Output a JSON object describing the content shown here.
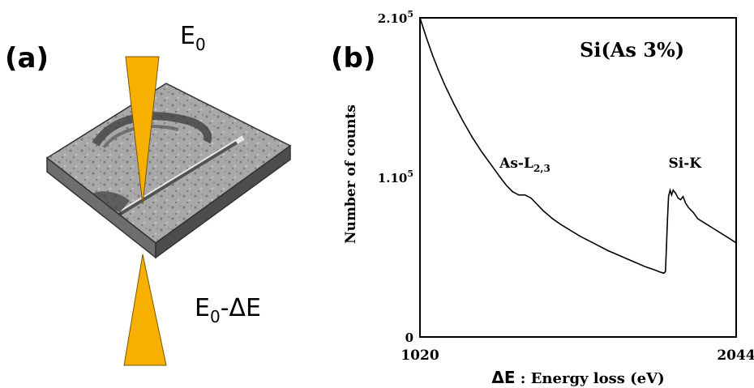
{
  "panel_a": {
    "label": "(a)",
    "beam_in_label": {
      "base": "E",
      "sub": "0"
    },
    "beam_out_label": {
      "base": "E",
      "sub": "0",
      "suffix": "-ΔE"
    },
    "colors": {
      "beam": "#f7b000",
      "beam_edge": "#7a5600",
      "slab_top": "#a9a9a9",
      "slab_side": "#5a5a5a"
    }
  },
  "panel_b": {
    "label": "(b)",
    "chart_data": {
      "type": "line",
      "title": "Si(As 3%)",
      "xlabel_symbol": "ΔE",
      "xlabel_text": " : Energy loss (eV)",
      "ylabel": "Number of counts",
      "xlim": [
        1020,
        2044
      ],
      "ylim": [
        0,
        200000
      ],
      "x_ticks": [
        "1020",
        "2044"
      ],
      "y_ticks": [
        {
          "value": 0,
          "base": "0",
          "sup": ""
        },
        {
          "value": 100000,
          "base": "1.10",
          "sup": "5"
        },
        {
          "value": 200000,
          "base": "2.10",
          "sup": "5"
        }
      ],
      "annotations": [
        {
          "base": "As-L",
          "sub": "2,3",
          "x": 1360,
          "y": 97000
        },
        {
          "base": "Si-K",
          "sub": "",
          "x": 1878,
          "y": 97000
        }
      ],
      "series": [
        {
          "x": [
            1020,
            1040,
            1060,
            1080,
            1100,
            1130,
            1160,
            1190,
            1220,
            1250,
            1280,
            1300,
            1320,
            1340,
            1360,
            1380,
            1400,
            1420,
            1450,
            1480,
            1510,
            1540,
            1570,
            1600,
            1630,
            1660,
            1690,
            1720,
            1750,
            1780,
            1800,
            1810,
            1815,
            1818,
            1822,
            1825,
            1830,
            1835,
            1840,
            1848,
            1856,
            1864,
            1872,
            1880,
            1890,
            1905,
            1920,
            1945,
            1970,
            1995,
            2020,
            2044
          ],
          "y": [
            200000,
            188000,
            177000,
            167000,
            158000,
            146000,
            135000,
            125000,
            116000,
            108000,
            100000,
            95000,
            91000,
            89000,
            89000,
            87000,
            83000,
            79000,
            74000,
            70000,
            66500,
            63000,
            60000,
            57000,
            54000,
            51500,
            49000,
            46500,
            44000,
            42000,
            40500,
            40000,
            41000,
            55000,
            75000,
            88000,
            92000,
            89000,
            92000,
            90000,
            87000,
            86000,
            88000,
            84000,
            81000,
            78000,
            74000,
            71000,
            68000,
            65000,
            62000,
            59000
          ]
        }
      ]
    }
  }
}
